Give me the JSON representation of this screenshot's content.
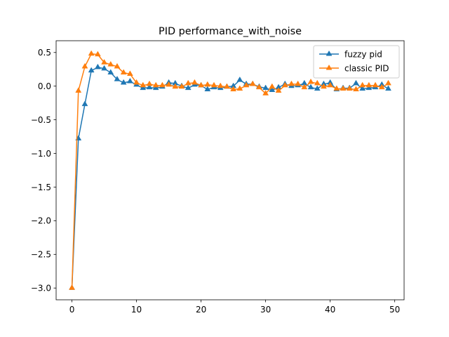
{
  "chart_data": {
    "type": "line",
    "title": "PID performance_with_noise",
    "xlabel": "",
    "ylabel": "",
    "xlim": [
      -2.45,
      51.45
    ],
    "ylim": [
      -3.175,
      0.675
    ],
    "xticks": [
      0,
      10,
      20,
      30,
      40,
      50
    ],
    "yticks": [
      0.5,
      0.0,
      -0.5,
      -1.0,
      -1.5,
      -2.0,
      -2.5,
      -3.0
    ],
    "ytick_labels": [
      "0.5",
      "0.0",
      "−0.5",
      "−1.0",
      "−1.5",
      "−2.0",
      "−2.5",
      "−3.0"
    ],
    "xtick_labels": [
      "0",
      "10",
      "20",
      "30",
      "40",
      "50"
    ],
    "grid": false,
    "legend_position": "upper right",
    "marker": "triangle-up",
    "x": [
      0,
      1,
      2,
      3,
      4,
      5,
      6,
      7,
      8,
      9,
      10,
      11,
      12,
      13,
      14,
      15,
      16,
      17,
      18,
      19,
      20,
      21,
      22,
      23,
      24,
      25,
      26,
      27,
      28,
      29,
      30,
      31,
      32,
      33,
      34,
      35,
      36,
      37,
      38,
      39,
      40,
      41,
      42,
      43,
      44,
      45,
      46,
      47,
      48,
      49
    ],
    "series": [
      {
        "name": "fuzzy pid",
        "color": "#1f77b4",
        "values": [
          -3.0,
          -0.78,
          -0.27,
          0.23,
          0.28,
          0.26,
          0.2,
          0.1,
          0.05,
          0.07,
          0.02,
          -0.03,
          -0.02,
          -0.03,
          -0.01,
          0.05,
          0.04,
          0.0,
          -0.03,
          0.02,
          0.01,
          -0.05,
          -0.02,
          -0.03,
          -0.01,
          0.0,
          0.09,
          0.03,
          0.03,
          -0.01,
          -0.03,
          -0.06,
          -0.02,
          0.03,
          0.0,
          0.01,
          0.04,
          -0.02,
          -0.04,
          0.03,
          0.05,
          -0.05,
          -0.03,
          -0.03,
          0.04,
          -0.04,
          -0.03,
          -0.02,
          0.02,
          -0.04
        ]
      },
      {
        "name": "classic PID",
        "color": "#ff7f0e",
        "values": [
          -3.0,
          -0.07,
          0.29,
          0.48,
          0.47,
          0.35,
          0.32,
          0.29,
          0.2,
          0.18,
          0.05,
          0.01,
          0.03,
          0.01,
          0.01,
          0.02,
          -0.01,
          -0.01,
          0.04,
          0.05,
          0.01,
          0.02,
          0.01,
          0.0,
          -0.01,
          -0.05,
          -0.04,
          0.01,
          0.03,
          -0.02,
          -0.11,
          -0.01,
          -0.07,
          0.01,
          0.03,
          0.03,
          -0.02,
          0.06,
          0.04,
          -0.01,
          0.01,
          -0.04,
          -0.04,
          -0.04,
          -0.05,
          0.01,
          0.01,
          0.01,
          -0.02,
          0.04
        ]
      }
    ]
  }
}
